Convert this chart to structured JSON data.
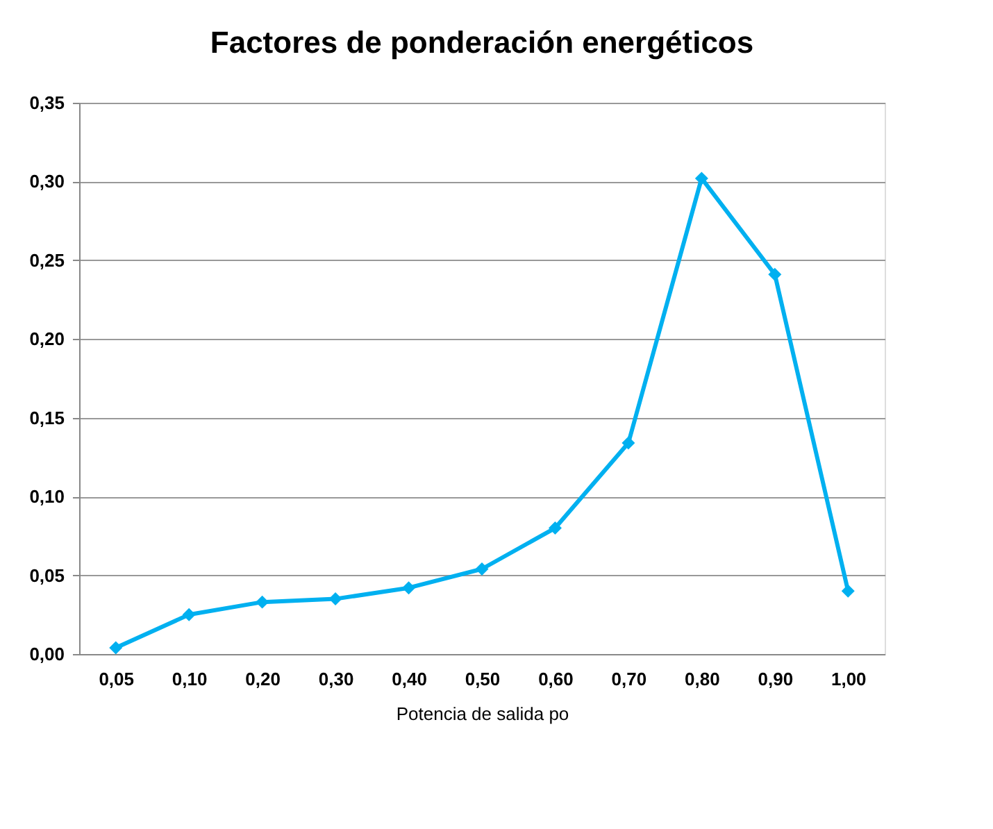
{
  "chart_data": {
    "type": "line",
    "title": "Factores de ponderación energéticos",
    "xlabel": "Potencia de salida po",
    "categories": [
      "0,05",
      "0,10",
      "0,20",
      "0,30",
      "0,40",
      "0,50",
      "0,60",
      "0,70",
      "0,80",
      "0,90",
      "1,00"
    ],
    "series": [
      {
        "color": "#00b0f0",
        "values": [
          0.004,
          0.025,
          0.033,
          0.035,
          0.042,
          0.054,
          0.08,
          0.134,
          0.302,
          0.241,
          0.04
        ]
      }
    ],
    "ylim": [
      0,
      0.35
    ],
    "yticks": [
      {
        "value": 0,
        "label": "0,00"
      },
      {
        "value": 0.05,
        "label": "0,05"
      },
      {
        "value": 0.1,
        "label": "0,10"
      },
      {
        "value": 0.15,
        "label": "0,15"
      },
      {
        "value": 0.2,
        "label": "0,20"
      },
      {
        "value": 0.25,
        "label": "0,25"
      },
      {
        "value": 0.3,
        "label": "0,30"
      },
      {
        "value": 0.35,
        "label": "0,35"
      }
    ],
    "grid": "y",
    "marker": "diamond",
    "line_style": "solid",
    "legend": false
  }
}
